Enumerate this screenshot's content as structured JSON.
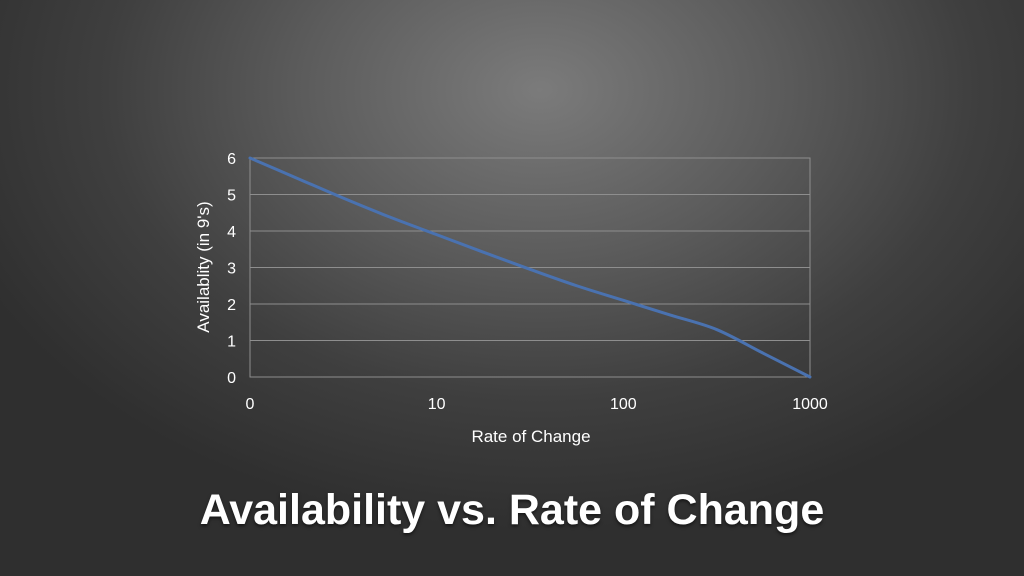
{
  "slide": {
    "title": "Availability vs. Rate of Change"
  },
  "chart_data": {
    "type": "line",
    "title": "",
    "xlabel": "Rate of Change",
    "ylabel": "Availablity (in 9's)",
    "x_ticks": [
      "0",
      "10",
      "100",
      "1000"
    ],
    "y_ticks": [
      "0",
      "1",
      "2",
      "3",
      "4",
      "5",
      "6"
    ],
    "xlim": [
      0,
      3
    ],
    "ylim": [
      0,
      6
    ],
    "grid": true,
    "legend": "none",
    "series": [
      {
        "color": "#4a72b0",
        "x": [
          0,
          0.25,
          0.5,
          0.75,
          1,
          1.25,
          1.5,
          1.75,
          2,
          2.25,
          2.5,
          2.75,
          3
        ],
        "y": [
          6,
          5.45,
          4.9,
          4.38,
          3.9,
          3.42,
          2.95,
          2.5,
          2.1,
          1.7,
          1.3,
          0.65,
          0
        ]
      }
    ]
  }
}
